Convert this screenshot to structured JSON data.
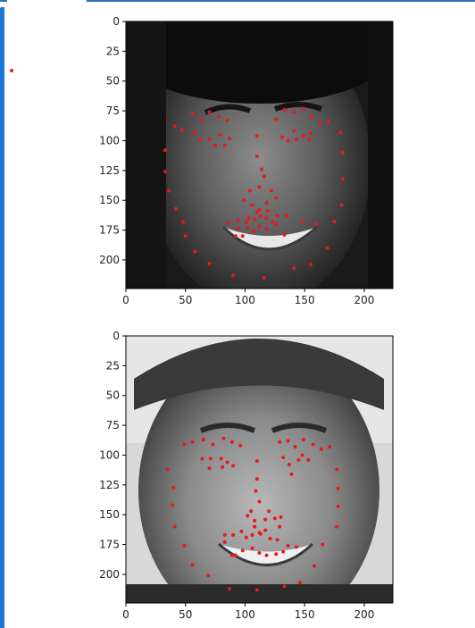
{
  "colors": {
    "accent": "#1a77d8",
    "landmark": "#e8191d"
  },
  "plots": [
    {
      "type": "scatter",
      "image": "grayscale face photo with facial keypoints",
      "x_ticks": [
        "0",
        "50",
        "100",
        "150",
        "200"
      ],
      "y_ticks": [
        "0",
        "25",
        "50",
        "75",
        "100",
        "125",
        "150",
        "175",
        "200"
      ],
      "xlim": [
        0,
        224
      ],
      "ylim": [
        224,
        0
      ],
      "points": [
        [
          41,
          88
        ],
        [
          47,
          91
        ],
        [
          56,
          77
        ],
        [
          63,
          82
        ],
        [
          70,
          76
        ],
        [
          78,
          80
        ],
        [
          85,
          83
        ],
        [
          58,
          93
        ],
        [
          62,
          99
        ],
        [
          70,
          99
        ],
        [
          75,
          104
        ],
        [
          83,
          104
        ],
        [
          87,
          98
        ],
        [
          79,
          95
        ],
        [
          126,
          82
        ],
        [
          133,
          74
        ],
        [
          141,
          76
        ],
        [
          149,
          73
        ],
        [
          156,
          80
        ],
        [
          163,
          86
        ],
        [
          170,
          84
        ],
        [
          131,
          97
        ],
        [
          136,
          100
        ],
        [
          143,
          99
        ],
        [
          149,
          96
        ],
        [
          154,
          99
        ],
        [
          155,
          94
        ],
        [
          141,
          92
        ],
        [
          110,
          96
        ],
        [
          110,
          113
        ],
        [
          114,
          124
        ],
        [
          116,
          130
        ],
        [
          112,
          139
        ],
        [
          104,
          142
        ],
        [
          122,
          142
        ],
        [
          99,
          150
        ],
        [
          106,
          154
        ],
        [
          112,
          158
        ],
        [
          118,
          152
        ],
        [
          126,
          148
        ],
        [
          33,
          108
        ],
        [
          33,
          126
        ],
        [
          36,
          142
        ],
        [
          42,
          157
        ],
        [
          48,
          168
        ],
        [
          50,
          180
        ],
        [
          58,
          193
        ],
        [
          70,
          203
        ],
        [
          90,
          213
        ],
        [
          116,
          215
        ],
        [
          141,
          207
        ],
        [
          155,
          204
        ],
        [
          169,
          190
        ],
        [
          175,
          168
        ],
        [
          181,
          154
        ],
        [
          182,
          132
        ],
        [
          182,
          110
        ],
        [
          180,
          93
        ],
        [
          86,
          169
        ],
        [
          94,
          167
        ],
        [
          101,
          168
        ],
        [
          108,
          166
        ],
        [
          113,
          163
        ],
        [
          118,
          165
        ],
        [
          127,
          163
        ],
        [
          135,
          163
        ],
        [
          148,
          168
        ],
        [
          160,
          170
        ],
        [
          92,
          180
        ],
        [
          98,
          180
        ],
        [
          102,
          173
        ],
        [
          107,
          176
        ],
        [
          112,
          172
        ],
        [
          118,
          174
        ],
        [
          126,
          170
        ],
        [
          133,
          179
        ],
        [
          94,
          174
        ],
        [
          103,
          165
        ],
        [
          110,
          160
        ],
        [
          119,
          159
        ],
        [
          123,
          168
        ]
      ]
    },
    {
      "type": "scatter",
      "image": "grayscale face photo with facial keypoints",
      "x_ticks": [
        "0",
        "50",
        "100",
        "150",
        "200"
      ],
      "y_ticks": [
        "0",
        "25",
        "50",
        "75",
        "100",
        "125",
        "150",
        "175",
        "200"
      ],
      "xlim": [
        0,
        224
      ],
      "ylim": [
        224,
        0
      ],
      "points": [
        [
          49,
          91
        ],
        [
          56,
          89
        ],
        [
          65,
          87
        ],
        [
          73,
          91
        ],
        [
          82,
          86
        ],
        [
          89,
          89
        ],
        [
          96,
          92
        ],
        [
          64,
          103
        ],
        [
          71,
          103
        ],
        [
          80,
          103
        ],
        [
          85,
          106
        ],
        [
          90,
          109
        ],
        [
          81,
          110
        ],
        [
          70,
          111
        ],
        [
          129,
          89
        ],
        [
          136,
          88
        ],
        [
          142,
          93
        ],
        [
          149,
          87
        ],
        [
          157,
          91
        ],
        [
          164,
          95
        ],
        [
          171,
          93
        ],
        [
          132,
          102
        ],
        [
          137,
          108
        ],
        [
          145,
          104
        ],
        [
          148,
          100
        ],
        [
          153,
          104
        ],
        [
          139,
          116
        ],
        [
          110,
          105
        ],
        [
          110,
          120
        ],
        [
          109,
          130
        ],
        [
          112,
          139
        ],
        [
          105,
          147
        ],
        [
          120,
          147
        ],
        [
          102,
          151
        ],
        [
          108,
          155
        ],
        [
          117,
          154
        ],
        [
          125,
          153
        ],
        [
          130,
          152
        ],
        [
          35,
          112
        ],
        [
          40,
          127
        ],
        [
          39,
          142
        ],
        [
          41,
          160
        ],
        [
          49,
          176
        ],
        [
          56,
          192
        ],
        [
          69,
          201
        ],
        [
          87,
          212
        ],
        [
          110,
          213
        ],
        [
          133,
          210
        ],
        [
          146,
          207
        ],
        [
          158,
          193
        ],
        [
          165,
          175
        ],
        [
          177,
          160
        ],
        [
          178,
          143
        ],
        [
          178,
          128
        ],
        [
          177,
          112
        ],
        [
          83,
          167
        ],
        [
          83,
          173
        ],
        [
          90,
          167
        ],
        [
          101,
          169
        ],
        [
          106,
          167
        ],
        [
          112,
          165
        ],
        [
          117,
          163
        ],
        [
          127,
          171
        ],
        [
          136,
          176
        ],
        [
          143,
          177
        ],
        [
          89,
          184
        ],
        [
          92,
          184
        ],
        [
          98,
          180
        ],
        [
          106,
          178
        ],
        [
          112,
          182
        ],
        [
          118,
          184
        ],
        [
          126,
          183
        ],
        [
          132,
          181
        ],
        [
          97,
          164
        ],
        [
          108,
          160
        ],
        [
          113,
          166
        ],
        [
          121,
          170
        ],
        [
          129,
          160
        ]
      ]
    }
  ]
}
